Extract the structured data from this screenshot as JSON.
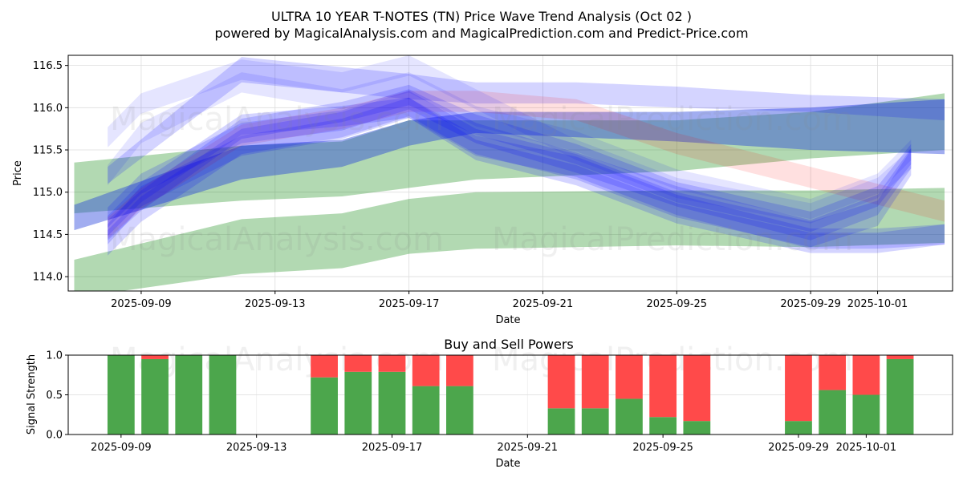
{
  "title_line1": "ULTRA 10 YEAR T-NOTES (TN) Price Wave Trend Analysis (Oct 02 )",
  "title_line2": "powered by MagicalAnalysis.com and MagicalPrediction.com and Predict-Price.com",
  "watermarks": [
    "MagicalAnalysis.com",
    "MagicalPrediction.com"
  ],
  "colors": {
    "green_band": "rgba(0,128,0,0.3)",
    "blue_band": "rgba(0,0,255,0.17)",
    "red_band": "rgba(255,0,0,0.12)",
    "buy": "#4ca64c",
    "sell": "#ff4a4a"
  },
  "chart_data": [
    {
      "type": "area",
      "title": "",
      "xlabel": "Date",
      "ylabel": "Price",
      "xlim": [
        "2025-09-06.82",
        "2025-10-03.24"
      ],
      "ylim": [
        113.83,
        116.62
      ],
      "xticks": [
        "2025-09-09",
        "2025-09-13",
        "2025-09-17",
        "2025-09-21",
        "2025-09-25",
        "2025-09-29",
        "2025-10-01"
      ],
      "yticks": [
        "114.0",
        "114.5",
        "115.0",
        "115.5",
        "116.0",
        "116.5"
      ],
      "grid": true,
      "bands": [
        {
          "name": "green-lower",
          "color": "green",
          "dates": [
            "2025-09-07",
            "2025-09-12",
            "2025-09-15",
            "2025-09-17",
            "2025-09-19",
            "2025-09-25",
            "2025-09-29",
            "2025-10-03"
          ],
          "lo": [
            113.75,
            114.03,
            114.1,
            114.27,
            114.33,
            114.37,
            114.35,
            114.4
          ],
          "hi": [
            114.2,
            114.68,
            114.75,
            114.92,
            115.0,
            115.02,
            115.02,
            115.05
          ]
        },
        {
          "name": "green-upper",
          "color": "green",
          "dates": [
            "2025-09-07",
            "2025-09-12",
            "2025-09-15",
            "2025-09-17",
            "2025-09-19",
            "2025-09-25",
            "2025-09-29",
            "2025-10-03"
          ],
          "lo": [
            114.75,
            114.9,
            114.95,
            115.05,
            115.15,
            115.25,
            115.4,
            115.5
          ],
          "hi": [
            115.35,
            115.55,
            115.6,
            115.85,
            115.85,
            115.85,
            115.95,
            116.17
          ]
        },
        {
          "name": "blue-trend",
          "color": "blue-dark",
          "dates": [
            "2025-09-07",
            "2025-09-12",
            "2025-09-15",
            "2025-09-17",
            "2025-09-19",
            "2025-09-25",
            "2025-09-29",
            "2025-10-03"
          ],
          "lo": [
            114.55,
            115.15,
            115.3,
            115.55,
            115.7,
            115.6,
            115.5,
            115.45
          ],
          "hi": [
            114.85,
            115.55,
            115.62,
            115.85,
            115.95,
            115.95,
            116.0,
            116.1
          ]
        },
        {
          "name": "blue-top",
          "color": "blue",
          "dates": [
            "2025-09-08",
            "2025-09-12",
            "2025-09-17",
            "2025-09-19",
            "2025-09-22",
            "2025-09-25",
            "2025-09-29",
            "2025-10-03"
          ],
          "lo": [
            115.1,
            116.3,
            116.1,
            116.05,
            116.05,
            116.0,
            115.95,
            115.85
          ],
          "hi": [
            115.3,
            116.6,
            116.4,
            116.3,
            116.3,
            116.25,
            116.15,
            116.1
          ]
        },
        {
          "name": "red-wave",
          "color": "red",
          "dates": [
            "2025-09-08",
            "2025-09-09",
            "2025-09-12",
            "2025-09-15",
            "2025-09-17",
            "2025-09-19",
            "2025-09-22",
            "2025-09-25",
            "2025-09-29",
            "2025-10-01",
            "2025-10-03"
          ],
          "lo": [
            114.45,
            114.8,
            115.55,
            115.75,
            115.95,
            115.95,
            115.85,
            115.45,
            115.05,
            114.85,
            114.65
          ],
          "hi": [
            114.7,
            115.05,
            115.8,
            116.0,
            116.2,
            116.2,
            116.1,
            115.7,
            115.3,
            115.1,
            114.9
          ]
        },
        {
          "name": "blue-wave-1",
          "color": "blue",
          "dates": [
            "2025-09-08",
            "2025-09-09",
            "2025-09-12",
            "2025-09-15",
            "2025-09-17",
            "2025-09-19",
            "2025-09-22",
            "2025-09-25",
            "2025-09-29",
            "2025-10-01",
            "2025-10-02"
          ],
          "lo": [
            114.43,
            114.78,
            115.63,
            115.83,
            116.03,
            115.68,
            115.33,
            114.88,
            114.53,
            114.83,
            115.33
          ],
          "hi": [
            114.67,
            115.02,
            115.87,
            116.07,
            116.27,
            115.92,
            115.57,
            115.12,
            114.77,
            115.07,
            115.57
          ]
        },
        {
          "name": "blue-wave-2",
          "color": "blue",
          "dates": [
            "2025-09-08",
            "2025-09-09",
            "2025-09-12",
            "2025-09-15",
            "2025-09-17",
            "2025-09-19",
            "2025-09-22",
            "2025-09-25",
            "2025-09-29",
            "2025-10-01",
            "2025-10-02"
          ],
          "lo": [
            114.58,
            114.98,
            115.58,
            115.73,
            115.98,
            115.58,
            115.23,
            114.83,
            114.43,
            114.73,
            115.28
          ],
          "hi": [
            114.82,
            115.22,
            115.82,
            115.97,
            116.22,
            115.82,
            115.47,
            115.07,
            114.67,
            114.97,
            115.52
          ]
        },
        {
          "name": "blue-wave-3",
          "color": "blue",
          "dates": [
            "2025-09-08",
            "2025-09-09",
            "2025-09-12",
            "2025-09-15",
            "2025-09-17",
            "2025-09-19",
            "2025-09-22",
            "2025-09-25",
            "2025-09-29",
            "2025-10-01",
            "2025-10-02"
          ],
          "lo": [
            114.25,
            114.65,
            115.45,
            115.65,
            115.9,
            115.45,
            115.15,
            114.7,
            114.35,
            114.6,
            115.2
          ],
          "hi": [
            114.55,
            114.95,
            115.75,
            115.95,
            116.2,
            115.75,
            115.45,
            115.0,
            114.65,
            114.9,
            115.5
          ]
        },
        {
          "name": "blue-wave-4",
          "color": "blue-light",
          "dates": [
            "2025-09-08",
            "2025-09-09",
            "2025-09-12",
            "2025-09-15",
            "2025-09-17",
            "2025-09-19",
            "2025-09-22",
            "2025-09-25",
            "2025-09-29",
            "2025-10-01",
            "2025-10-02"
          ],
          "lo": [
            115.08,
            115.58,
            116.18,
            115.98,
            116.18,
            115.78,
            115.48,
            115.03,
            114.68,
            114.98,
            115.38
          ],
          "hi": [
            115.32,
            115.82,
            116.42,
            116.22,
            116.42,
            116.02,
            115.72,
            115.27,
            114.92,
            115.22,
            115.62
          ]
        },
        {
          "name": "blue-wave-5",
          "color": "blue-light",
          "dates": [
            "2025-09-08",
            "2025-09-09",
            "2025-09-12",
            "2025-09-15",
            "2025-09-17",
            "2025-09-19",
            "2025-09-22",
            "2025-09-25",
            "2025-09-29",
            "2025-10-01",
            "2025-10-02"
          ],
          "lo": [
            115.53,
            115.93,
            116.33,
            116.18,
            116.38,
            115.98,
            115.38,
            114.93,
            114.63,
            114.93,
            115.28
          ],
          "hi": [
            115.77,
            116.17,
            116.57,
            116.42,
            116.62,
            116.22,
            115.62,
            115.17,
            114.87,
            115.17,
            115.52
          ]
        },
        {
          "name": "blue-wave-6",
          "color": "blue",
          "dates": [
            "2025-09-08",
            "2025-09-09",
            "2025-09-12",
            "2025-09-15",
            "2025-09-17",
            "2025-09-19",
            "2025-09-22",
            "2025-09-25",
            "2025-09-29",
            "2025-10-01",
            "2025-10-03"
          ],
          "lo": [
            114.48,
            114.88,
            115.68,
            115.78,
            115.88,
            115.43,
            115.18,
            114.73,
            114.33,
            114.33,
            114.38
          ],
          "hi": [
            114.72,
            115.12,
            115.92,
            116.02,
            116.12,
            115.67,
            115.42,
            114.97,
            114.57,
            114.57,
            114.62
          ]
        },
        {
          "name": "blue-wave-7",
          "color": "blue",
          "dates": [
            "2025-09-08",
            "2025-09-09",
            "2025-09-12",
            "2025-09-15",
            "2025-09-17",
            "2025-09-19",
            "2025-09-22",
            "2025-09-25",
            "2025-09-29",
            "2025-10-01",
            "2025-10-03"
          ],
          "lo": [
            114.38,
            114.83,
            115.43,
            115.63,
            115.88,
            115.38,
            115.08,
            114.63,
            114.28,
            114.28,
            114.38
          ],
          "hi": [
            114.62,
            115.07,
            115.67,
            115.87,
            116.12,
            115.62,
            115.32,
            114.87,
            114.52,
            114.52,
            114.62
          ]
        }
      ]
    },
    {
      "type": "bar",
      "title": "Buy and Sell Powers",
      "xlabel": "Date",
      "ylabel": "Signal Strength",
      "xlim": [
        "2025-09-07.44",
        "2025-10-03.55"
      ],
      "ylim": [
        0,
        1
      ],
      "xticks": [
        "2025-09-09",
        "2025-09-13",
        "2025-09-17",
        "2025-09-21",
        "2025-09-25",
        "2025-09-29",
        "2025-10-01"
      ],
      "yticks": [
        "0.0",
        "0.5",
        "1.0"
      ],
      "grid": true,
      "categories": [
        "2025-09-09",
        "2025-09-10",
        "2025-09-11",
        "2025-09-12",
        "2025-09-15",
        "2025-09-16",
        "2025-09-17",
        "2025-09-18",
        "2025-09-19",
        "2025-09-22",
        "2025-09-23",
        "2025-09-24",
        "2025-09-25",
        "2025-09-26",
        "2025-09-29",
        "2025-09-30",
        "2025-10-01",
        "2025-10-02"
      ],
      "series": [
        {
          "name": "Buy",
          "values": [
            1.0,
            0.95,
            1.0,
            1.0,
            0.72,
            0.79,
            0.79,
            0.61,
            0.61,
            0.33,
            0.33,
            0.45,
            0.22,
            0.17,
            0.17,
            0.56,
            0.5,
            0.95
          ]
        },
        {
          "name": "Sell",
          "values": [
            0.0,
            0.05,
            0.0,
            0.0,
            0.28,
            0.21,
            0.21,
            0.39,
            0.39,
            0.67,
            0.67,
            0.55,
            0.78,
            0.83,
            0.83,
            0.44,
            0.5,
            0.05
          ]
        }
      ]
    }
  ]
}
